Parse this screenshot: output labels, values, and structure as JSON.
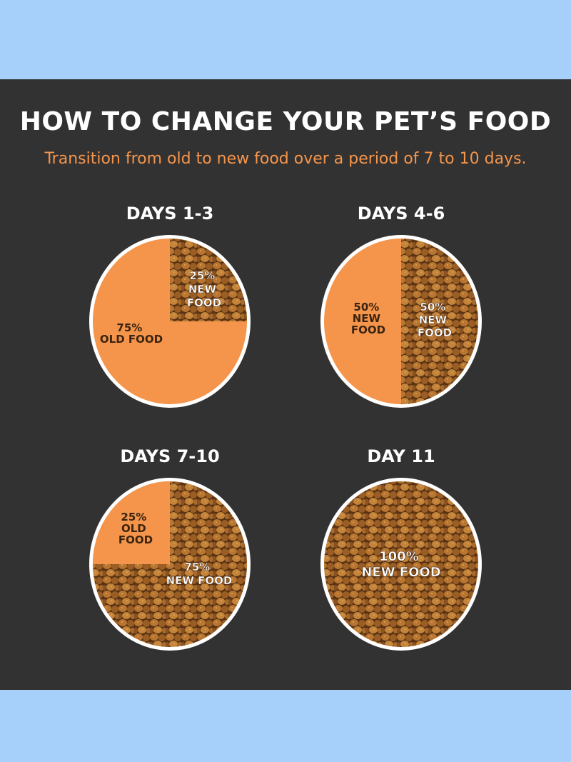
{
  "colors": {
    "page_bg": "#a6cffa",
    "panel_bg": "#323232",
    "accent_orange": "#f5954b",
    "kibble_brown": "#a86a2a",
    "bowl_rim": "#ffffff"
  },
  "header": {
    "title": "HOW TO CHANGE YOUR PET’S FOOD",
    "subtitle": "Transition from old to new food over a period of 7 to 10 days."
  },
  "stages": [
    {
      "label": "DAYS 1-3",
      "old_fraction": 0.75,
      "new_fraction": 0.25,
      "old_text": [
        "75%",
        "OLD FOOD"
      ],
      "new_text": [
        "25%",
        "NEW",
        "FOOD"
      ]
    },
    {
      "label": "DAYS 4-6",
      "old_fraction": 0.5,
      "new_fraction": 0.5,
      "old_text": [
        "50%",
        "NEW",
        "FOOD"
      ],
      "new_text": [
        "50%",
        "NEW",
        "FOOD"
      ]
    },
    {
      "label": "DAYS 7-10",
      "old_fraction": 0.25,
      "new_fraction": 0.75,
      "old_text": [
        "25%",
        "OLD",
        "FOOD"
      ],
      "new_text": [
        "75%",
        "NEW FOOD"
      ]
    },
    {
      "label": "DAY 11",
      "old_fraction": 0,
      "new_fraction": 1,
      "old_text": [],
      "new_text": [
        "100%",
        "NEW FOOD"
      ]
    }
  ]
}
